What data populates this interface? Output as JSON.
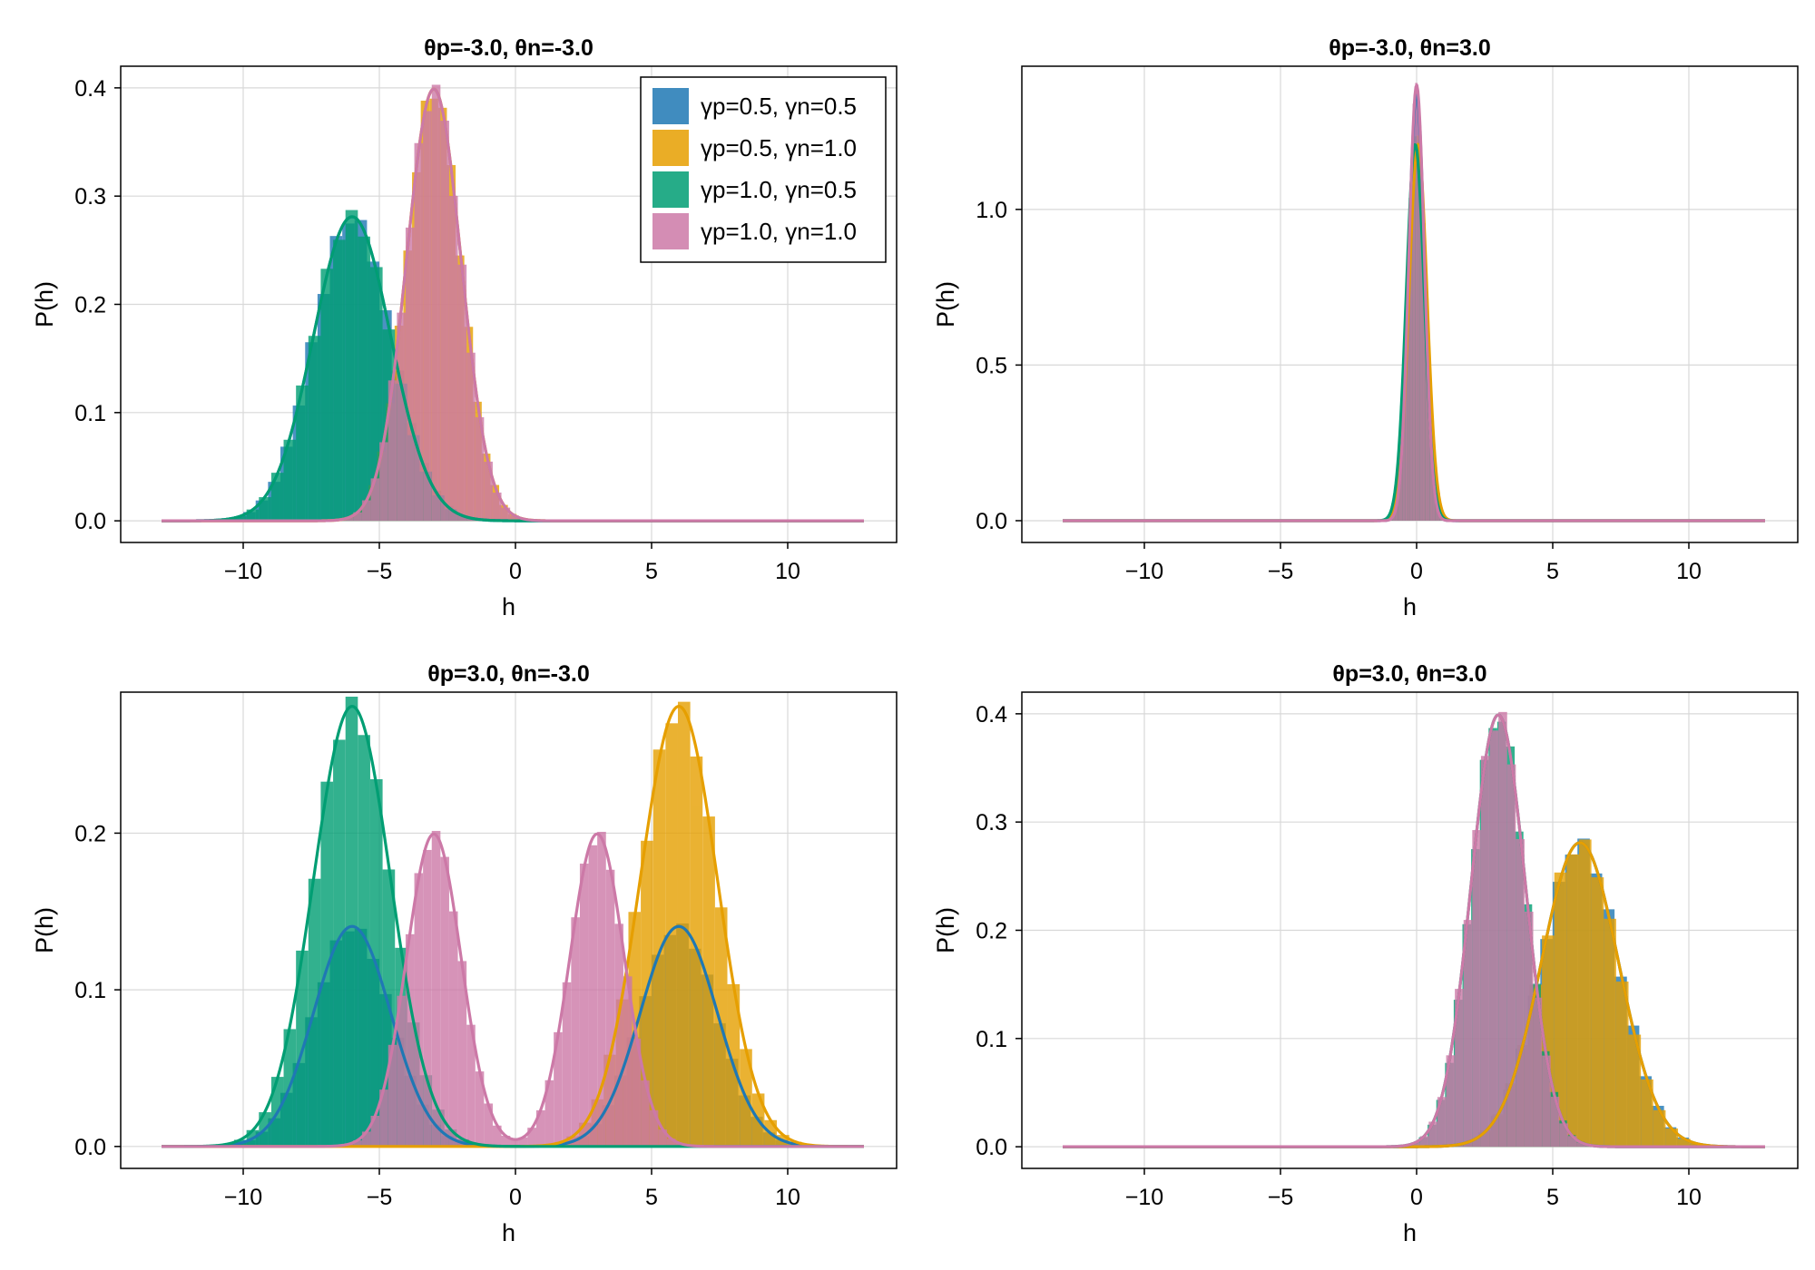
{
  "figure": {
    "rows": 2,
    "cols": 2
  },
  "colors": {
    "s1": "#1f78b4",
    "s2": "#e69f00",
    "s3": "#009e73",
    "s4": "#cc79a7",
    "grid": "#d8d8d8",
    "axis": "#000000"
  },
  "chart_data": [
    {
      "type": "histogram+line",
      "title": "θp=-3.0, θn=-3.0",
      "xlabel": "h",
      "ylabel": "P(h)",
      "xlim": [
        -14.5,
        14
      ],
      "ylim": [
        -0.02,
        0.42
      ],
      "xticks": [
        -10,
        -5,
        0,
        5,
        10
      ],
      "yticks": [
        0.0,
        0.1,
        0.2,
        0.3,
        0.4
      ],
      "ytick_labels": [
        "0.0",
        "0.1",
        "0.2",
        "0.3",
        "0.4"
      ],
      "legend": {
        "position": "top-right",
        "entries": [
          "γp=0.5, γn=0.5",
          "γp=0.5, γn=1.0",
          "γp=1.0, γn=0.5",
          "γp=1.0, γn=1.0"
        ]
      },
      "curve_range": [
        -13,
        12.8
      ],
      "series": [
        {
          "name": "γp=0.5, γn=0.5",
          "color_key": "s1",
          "components": [
            {
              "mean": -6,
              "sd": 1.42,
              "weight": 1.0
            }
          ]
        },
        {
          "name": "γp=0.5, γn=1.0",
          "color_key": "s2",
          "components": [
            {
              "mean": -3,
              "sd": 1.0,
              "weight": 1.0
            }
          ]
        },
        {
          "name": "γp=1.0, γn=0.5",
          "color_key": "s3",
          "components": [
            {
              "mean": -6,
              "sd": 1.42,
              "weight": 1.0
            }
          ]
        },
        {
          "name": "γp=1.0, γn=1.0",
          "color_key": "s4",
          "components": [
            {
              "mean": -3,
              "sd": 1.0,
              "weight": 1.0
            }
          ]
        }
      ]
    },
    {
      "type": "histogram+line",
      "title": "θp=-3.0, θn=3.0",
      "xlabel": "h",
      "ylabel": "P(h)",
      "xlim": [
        -14.5,
        14
      ],
      "ylim": [
        -0.07,
        1.46
      ],
      "xticks": [
        -10,
        -5,
        0,
        5,
        10
      ],
      "yticks": [
        0.0,
        0.5,
        1.0
      ],
      "ytick_labels": [
        "0.0",
        "0.5",
        "1.0"
      ],
      "curve_range": [
        -13,
        12.8
      ],
      "series": [
        {
          "name": "γp=0.5, γn=0.5",
          "color_key": "s1",
          "components": [
            {
              "mean": 0,
              "sd": 0.29,
              "weight": 1.0
            }
          ]
        },
        {
          "name": "γp=0.5, γn=1.0",
          "color_key": "s2",
          "components": [
            {
              "mean": 0.05,
              "sd": 0.33,
              "weight": 1.0
            }
          ]
        },
        {
          "name": "γp=1.0, γn=0.5",
          "color_key": "s3",
          "components": [
            {
              "mean": -0.05,
              "sd": 0.33,
              "weight": 1.0
            }
          ]
        },
        {
          "name": "γp=1.0, γn=1.0",
          "color_key": "s4",
          "components": [
            {
              "mean": 0,
              "sd": 0.285,
              "weight": 1.0
            }
          ]
        }
      ]
    },
    {
      "type": "histogram+line",
      "title": "θp=3.0, θn=-3.0",
      "xlabel": "h",
      "ylabel": "P(h)",
      "xlim": [
        -14.5,
        14
      ],
      "ylim": [
        -0.014,
        0.29
      ],
      "xticks": [
        -10,
        -5,
        0,
        5,
        10
      ],
      "yticks": [
        0.0,
        0.1,
        0.2
      ],
      "ytick_labels": [
        "0.0",
        "0.1",
        "0.2"
      ],
      "curve_range": [
        -13,
        12.8
      ],
      "series": [
        {
          "name": "γp=0.5, γn=0.5",
          "color_key": "s1",
          "components": [
            {
              "mean": -6,
              "sd": 1.42,
              "weight": 0.5
            },
            {
              "mean": 6,
              "sd": 1.42,
              "weight": 0.5
            }
          ]
        },
        {
          "name": "γp=0.5, γn=1.0",
          "color_key": "s2",
          "components": [
            {
              "mean": 6,
              "sd": 1.42,
              "weight": 1.0
            }
          ]
        },
        {
          "name": "γp=1.0, γn=0.5",
          "color_key": "s3",
          "components": [
            {
              "mean": -6,
              "sd": 1.42,
              "weight": 1.0
            }
          ]
        },
        {
          "name": "γp=1.0, γn=1.0",
          "color_key": "s4",
          "components": [
            {
              "mean": -3,
              "sd": 1.0,
              "weight": 0.5
            },
            {
              "mean": 3,
              "sd": 1.0,
              "weight": 0.5
            }
          ]
        }
      ]
    },
    {
      "type": "histogram+line",
      "title": "θp=3.0, θn=3.0",
      "xlabel": "h",
      "ylabel": "P(h)",
      "xlim": [
        -14.5,
        14
      ],
      "ylim": [
        -0.02,
        0.42
      ],
      "xticks": [
        -10,
        -5,
        0,
        5,
        10
      ],
      "yticks": [
        0.0,
        0.1,
        0.2,
        0.3,
        0.4
      ],
      "ytick_labels": [
        "0.0",
        "0.1",
        "0.2",
        "0.3",
        "0.4"
      ],
      "curve_range": [
        -13,
        12.8
      ],
      "series": [
        {
          "name": "γp=0.5, γn=0.5",
          "color_key": "s1",
          "components": [
            {
              "mean": 6,
              "sd": 1.42,
              "weight": 1.0
            }
          ]
        },
        {
          "name": "γp=0.5, γn=1.0",
          "color_key": "s2",
          "components": [
            {
              "mean": 6,
              "sd": 1.42,
              "weight": 1.0
            }
          ]
        },
        {
          "name": "γp=1.0, γn=0.5",
          "color_key": "s3",
          "components": [
            {
              "mean": 3,
              "sd": 1.0,
              "weight": 1.0
            }
          ]
        },
        {
          "name": "γp=1.0, γn=1.0",
          "color_key": "s4",
          "components": [
            {
              "mean": 3,
              "sd": 1.0,
              "weight": 1.0
            }
          ]
        }
      ]
    }
  ]
}
